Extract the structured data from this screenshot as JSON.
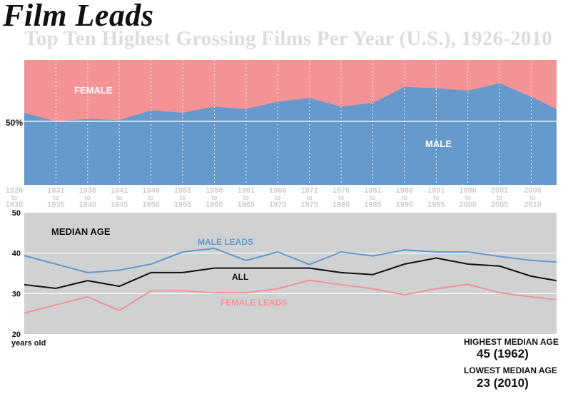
{
  "header": {
    "title": "Film Leads",
    "subtitle": "Top Ten Highest Grossing Films Per Year (U.S.), 1926-2010"
  },
  "periods": [
    {
      "start": "1926",
      "mid": "to",
      "end": "1930"
    },
    {
      "start": "1931",
      "mid": "to",
      "end": "1935"
    },
    {
      "start": "1936",
      "mid": "to",
      "end": "1940"
    },
    {
      "start": "1941",
      "mid": "to",
      "end": "1945"
    },
    {
      "start": "1946",
      "mid": "to",
      "end": "1950"
    },
    {
      "start": "1951",
      "mid": "to",
      "end": "1955"
    },
    {
      "start": "1956",
      "mid": "to",
      "end": "1960"
    },
    {
      "start": "1961",
      "mid": "to",
      "end": "1965"
    },
    {
      "start": "1966",
      "mid": "to",
      "end": "1970"
    },
    {
      "start": "1971",
      "mid": "to",
      "end": "1975"
    },
    {
      "start": "1976",
      "mid": "to",
      "end": "1980"
    },
    {
      "start": "1981",
      "mid": "to",
      "end": "1985"
    },
    {
      "start": "1986",
      "mid": "to",
      "end": "1990"
    },
    {
      "start": "1991",
      "mid": "to",
      "end": "1995"
    },
    {
      "start": "1996",
      "mid": "to",
      "end": "2000"
    },
    {
      "start": "2001",
      "mid": "to",
      "end": "2005"
    },
    {
      "start": "2006",
      "mid": "to",
      "end": "2010"
    }
  ],
  "colors": {
    "male": "#6699cc",
    "female": "#f49396",
    "all": "#111111",
    "panel": "#d0d1d3",
    "grid_white": "#ffffff"
  },
  "chart_data": [
    {
      "type": "area",
      "x": [
        1926,
        1931,
        1936,
        1941,
        1946,
        1951,
        1956,
        1961,
        1966,
        1971,
        1976,
        1981,
        1986,
        1991,
        1996,
        2001,
        2006,
        2010
      ],
      "series": [
        {
          "name": "MALE",
          "values": [
            57,
            50,
            52,
            51,
            59,
            57,
            62,
            60,
            66,
            69,
            62,
            65,
            78,
            77,
            75,
            81,
            70,
            60
          ]
        },
        {
          "name": "FEMALE",
          "values": [
            43,
            50,
            48,
            49,
            41,
            43,
            38,
            40,
            34,
            31,
            38,
            35,
            22,
            23,
            25,
            19,
            30,
            40
          ]
        }
      ],
      "stacked": true,
      "ylim": [
        0,
        100
      ],
      "reference_line": {
        "value": 50,
        "label": "50%"
      }
    },
    {
      "type": "line",
      "title": "MEDIAN AGE",
      "x": [
        1926,
        1931,
        1936,
        1941,
        1946,
        1951,
        1956,
        1961,
        1966,
        1971,
        1976,
        1981,
        1986,
        1991,
        1996,
        2001,
        2006,
        2010
      ],
      "series": [
        {
          "name": "MALE LEADS",
          "values": [
            39.4,
            37.3,
            35.2,
            35.8,
            37.3,
            40.3,
            41.2,
            38.2,
            40.3,
            37.2,
            40.3,
            39.3,
            40.8,
            40.3,
            40.3,
            39.2,
            38.2,
            37.8
          ]
        },
        {
          "name": "ALL",
          "values": [
            32.2,
            31.3,
            33.2,
            31.8,
            35.2,
            35.2,
            36.3,
            36.3,
            36.3,
            36.3,
            35.2,
            34.7,
            37.3,
            38.8,
            37.3,
            36.8,
            34.3,
            33.2
          ]
        },
        {
          "name": "FEMALE LEADS",
          "values": [
            25.2,
            27.2,
            29.2,
            25.8,
            30.7,
            30.7,
            30.2,
            30.2,
            31.2,
            33.3,
            32.2,
            31.2,
            29.7,
            31.2,
            32.3,
            30.2,
            29.2,
            28.5
          ]
        }
      ],
      "ylim": [
        20,
        50
      ],
      "yticks": [
        "20",
        "30",
        "40",
        "50"
      ],
      "ylabel": "years old"
    }
  ],
  "notes": {
    "area_labels": {
      "female": "FEMALE",
      "male": "MALE",
      "fifty": "50%"
    },
    "highest_label": "HIGHEST MEDIAN AGE",
    "highest_value": "45 (1962)",
    "lowest_label": "LOWEST MEDIAN AGE",
    "lowest_value": "23 (2010)"
  }
}
